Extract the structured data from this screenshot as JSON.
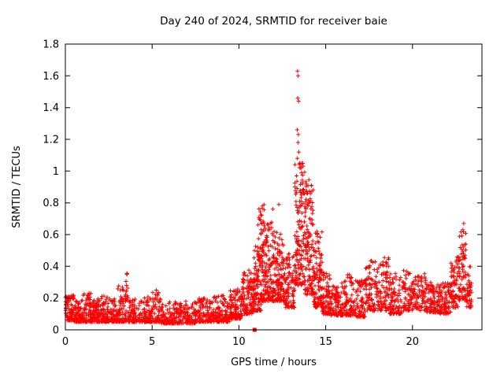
{
  "figure": {
    "background": "#ffffff",
    "border_color": "#000000"
  },
  "chart_data": {
    "type": "scatter",
    "title": "Day 240 of 2024, SRMTID for receiver baie",
    "xlabel": "GPS time / hours",
    "ylabel": "SRMTID / TECUs",
    "xlim": [
      0,
      24
    ],
    "ylim": [
      0,
      1.8
    ],
    "xticks": [
      0,
      5,
      10,
      15,
      20
    ],
    "xtick_labels": [
      "0",
      "5",
      "10",
      "15",
      "20"
    ],
    "yticks": [
      0,
      0.2,
      0.4,
      0.6,
      0.8,
      1.0,
      1.2,
      1.4,
      1.6,
      1.8
    ],
    "ytick_labels": [
      "0",
      "0.2",
      "0.4",
      "0.6",
      "0.8",
      "1",
      "1.2",
      "1.4",
      "1.6",
      "1.8"
    ],
    "grid": false,
    "legend": "none",
    "marker": "plus",
    "color": "#ff0000",
    "series_name": "SRMTID",
    "point_bins": [
      [
        0.0,
        0.5,
        80,
        0.06,
        0.22,
        2.2
      ],
      [
        0.5,
        1.0,
        80,
        0.05,
        0.2,
        2.2
      ],
      [
        1.0,
        1.5,
        80,
        0.05,
        0.24,
        2.2
      ],
      [
        1.5,
        2.0,
        80,
        0.05,
        0.2,
        2.2
      ],
      [
        2.0,
        2.5,
        70,
        0.05,
        0.22,
        2.2
      ],
      [
        2.5,
        3.0,
        70,
        0.05,
        0.2,
        2.2
      ],
      [
        3.0,
        3.5,
        70,
        0.05,
        0.28,
        2.2
      ],
      [
        3.45,
        3.65,
        14,
        0.18,
        0.36,
        1.2
      ],
      [
        3.6,
        4.5,
        90,
        0.05,
        0.2,
        2.2
      ],
      [
        4.5,
        5.0,
        70,
        0.05,
        0.22,
        2.2
      ],
      [
        5.0,
        5.5,
        60,
        0.05,
        0.26,
        2.0
      ],
      [
        5.5,
        6.5,
        110,
        0.04,
        0.18,
        2.0
      ],
      [
        6.5,
        7.5,
        110,
        0.04,
        0.18,
        2.0
      ],
      [
        7.5,
        8.5,
        110,
        0.05,
        0.2,
        2.0
      ],
      [
        8.5,
        9.5,
        110,
        0.05,
        0.22,
        2.0
      ],
      [
        9.5,
        10.2,
        100,
        0.07,
        0.26,
        2.0
      ],
      [
        10.2,
        10.8,
        100,
        0.1,
        0.38,
        1.8
      ],
      [
        10.8,
        11.3,
        110,
        0.12,
        0.55,
        1.8
      ],
      [
        11.1,
        11.5,
        25,
        0.45,
        0.8,
        1.2
      ],
      [
        11.3,
        12.0,
        150,
        0.18,
        0.68,
        1.8
      ],
      [
        12.0,
        12.6,
        130,
        0.18,
        0.62,
        1.8
      ],
      [
        12.6,
        13.2,
        90,
        0.14,
        0.48,
        1.8
      ],
      [
        13.2,
        13.8,
        140,
        0.28,
        1.05,
        1.5
      ],
      [
        13.8,
        14.3,
        130,
        0.22,
        0.97,
        1.6
      ],
      [
        14.3,
        14.8,
        110,
        0.14,
        0.62,
        1.8
      ],
      [
        14.8,
        15.3,
        85,
        0.1,
        0.36,
        1.8
      ],
      [
        15.3,
        16.0,
        85,
        0.09,
        0.3,
        1.8
      ],
      [
        16.0,
        16.6,
        75,
        0.09,
        0.35,
        1.8
      ],
      [
        16.6,
        17.3,
        75,
        0.08,
        0.32,
        1.8
      ],
      [
        17.3,
        18.0,
        85,
        0.12,
        0.44,
        1.6
      ],
      [
        18.0,
        18.7,
        85,
        0.12,
        0.46,
        1.6
      ],
      [
        18.7,
        19.4,
        85,
        0.1,
        0.36,
        1.8
      ],
      [
        19.4,
        20.1,
        75,
        0.12,
        0.38,
        1.6
      ],
      [
        20.1,
        20.8,
        75,
        0.12,
        0.36,
        1.6
      ],
      [
        20.8,
        21.5,
        85,
        0.11,
        0.3,
        1.8
      ],
      [
        21.5,
        22.2,
        85,
        0.1,
        0.3,
        1.8
      ],
      [
        22.2,
        22.7,
        75,
        0.14,
        0.46,
        1.5
      ],
      [
        22.7,
        23.1,
        65,
        0.18,
        0.62,
        1.3
      ],
      [
        23.1,
        23.4,
        45,
        0.14,
        0.4,
        1.6
      ]
    ],
    "outliers": [
      [
        13.38,
        1.63
      ],
      [
        13.41,
        1.6
      ],
      [
        13.39,
        1.46
      ],
      [
        13.44,
        1.44
      ],
      [
        13.36,
        1.26
      ],
      [
        13.42,
        1.23
      ],
      [
        13.4,
        1.18
      ],
      [
        13.45,
        1.12
      ],
      [
        13.37,
        1.08
      ],
      [
        13.5,
        1.05
      ],
      [
        13.55,
        1.02
      ],
      [
        13.6,
        0.99
      ],
      [
        11.35,
        0.78
      ],
      [
        11.95,
        0.76
      ],
      [
        12.3,
        0.79
      ],
      [
        22.95,
        0.67
      ],
      [
        22.9,
        0.63
      ],
      [
        3.55,
        0.35
      ]
    ],
    "zero_marker": {
      "x": 10.9,
      "y": 0,
      "shape": "filled-square"
    }
  }
}
